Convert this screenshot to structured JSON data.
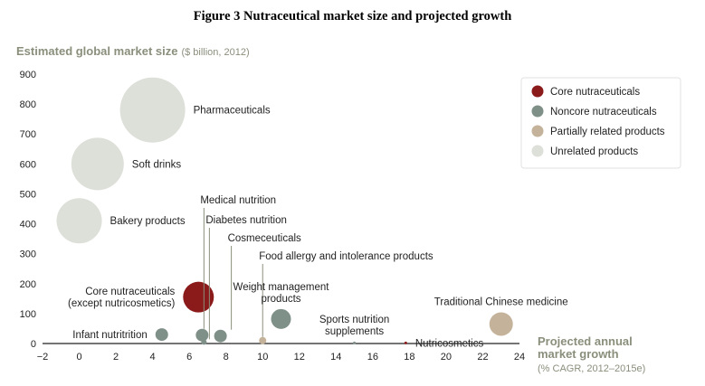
{
  "figure_title": "Figure 3   Nutraceutical market size and projected growth",
  "chart_data": {
    "type": "scatter",
    "ylabel": "Estimated global market size",
    "ylabel_unit": "($ billion, 2012)",
    "xlabel_lines": [
      "Projected annual",
      "market growth"
    ],
    "xlabel_unit": "(% CAGR, 2012–2015e)",
    "xlim": [
      -2,
      24
    ],
    "ylim": [
      0,
      900
    ],
    "x_ticks": [
      -2,
      0,
      2,
      4,
      6,
      8,
      10,
      12,
      14,
      16,
      18,
      20,
      22,
      24
    ],
    "y_ticks": [
      0,
      100,
      200,
      300,
      400,
      500,
      600,
      700,
      800,
      900
    ],
    "grid": false,
    "legend_position": "top-right",
    "categories": [
      {
        "key": "core",
        "name": "Core nutraceuticals",
        "color": "#8b1a1a"
      },
      {
        "key": "noncore",
        "name": "Noncore nutraceuticals",
        "color": "#7f9088"
      },
      {
        "key": "partial",
        "name": "Partially related products",
        "color": "#c4b39a"
      },
      {
        "key": "unrelated",
        "name": "Unrelated products",
        "color": "#dddfd9"
      }
    ],
    "points": [
      {
        "label_lines": [
          "Pharmaceuticals"
        ],
        "x": 4,
        "y": 780,
        "r": 36,
        "category": "unrelated",
        "label_anchor": "right"
      },
      {
        "label_lines": [
          "Soft drinks"
        ],
        "x": 1,
        "y": 600,
        "r": 29,
        "category": "unrelated",
        "label_anchor": "right"
      },
      {
        "label_lines": [
          "Bakery products"
        ],
        "x": 0,
        "y": 410,
        "r": 25,
        "category": "unrelated",
        "label_anchor": "right"
      },
      {
        "label_lines": [
          "Core nutraceuticals",
          "(except nutricosmetics)"
        ],
        "x": 6.5,
        "y": 155,
        "r": 17,
        "category": "core",
        "label_anchor": "left"
      },
      {
        "label_lines": [
          "Infant nutritrition"
        ],
        "x": 4.5,
        "y": 30,
        "r": 7,
        "category": "noncore",
        "label_anchor": "left"
      },
      {
        "label_lines": [
          "Medical nutrition"
        ],
        "x": 6.7,
        "y": 28,
        "r": 7,
        "category": "noncore",
        "label_anchor": "leader"
      },
      {
        "label_lines": [
          "Diabetes nutrition"
        ],
        "x": 6.8,
        "y": 5,
        "r": 3,
        "category": "noncore",
        "label_anchor": "leader"
      },
      {
        "label_lines": [
          "Cosmeceuticals"
        ],
        "x": 7.7,
        "y": 25,
        "r": 7,
        "category": "noncore",
        "label_anchor": "leader"
      },
      {
        "label_lines": [
          "Food allergy and intolerance products"
        ],
        "x": 10,
        "y": 10,
        "r": 4,
        "category": "partial",
        "label_anchor": "leader"
      },
      {
        "label_lines": [
          "Weight management",
          "products"
        ],
        "x": 11,
        "y": 82,
        "r": 11,
        "category": "noncore",
        "label_anchor": "above"
      },
      {
        "label_lines": [
          "Sports nutrition",
          "supplements"
        ],
        "x": 15,
        "y": 2,
        "r": 1.5,
        "category": "noncore",
        "label_anchor": "above"
      },
      {
        "label_lines": [
          "Nutricosmetics"
        ],
        "x": 17.8,
        "y": 2,
        "r": 1.5,
        "category": "core",
        "label_anchor": "right"
      },
      {
        "label_lines": [
          "Traditional Chinese medicine"
        ],
        "x": 23,
        "y": 65,
        "r": 13,
        "category": "partial",
        "label_anchor": "above"
      }
    ]
  }
}
